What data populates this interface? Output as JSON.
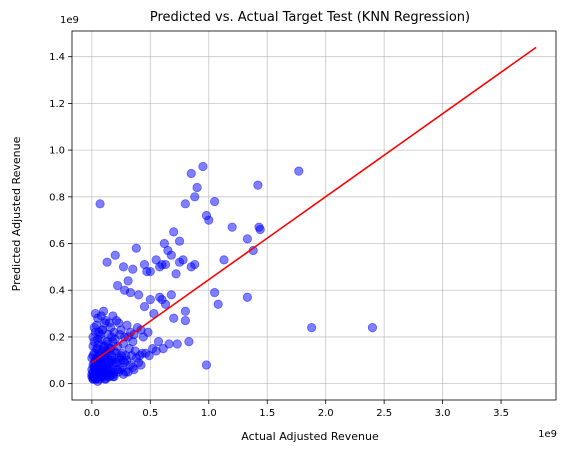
{
  "chart_data": {
    "type": "scatter",
    "title": "Predicted vs. Actual Target Test (KNN Regression)",
    "xlabel": "Actual Adjusted Revenue",
    "ylabel": "Predicted Adjusted Revenue",
    "x_offset_label": "1e9",
    "y_offset_label": "1e9",
    "xlim": [
      -0.17,
      3.97
    ],
    "ylim": [
      -0.07,
      1.51
    ],
    "x_ticks": [
      0.0,
      0.5,
      1.0,
      1.5,
      2.0,
      2.5,
      3.0,
      3.5
    ],
    "x_tick_labels": [
      "0.0",
      "0.5",
      "1.0",
      "1.5",
      "2.0",
      "2.5",
      "3.0",
      "3.5"
    ],
    "y_ticks": [
      0.0,
      0.2,
      0.4,
      0.6,
      0.8,
      1.0,
      1.2,
      1.4
    ],
    "y_tick_labels": [
      "0.0",
      "0.2",
      "0.4",
      "0.6",
      "0.8",
      "1.0",
      "1.2",
      "1.4"
    ],
    "grid": true,
    "point_color": "#0000ff",
    "point_alpha": 0.5,
    "line_color": "#ff0000",
    "scatter": {
      "x": [
        0.07,
        0.95,
        0.85,
        0.9,
        1.77,
        1.42,
        0.88,
        0.8,
        0.98,
        1.05,
        0.7,
        0.75,
        1.2,
        1.44,
        1.43,
        1.33,
        1.0,
        0.62,
        0.55,
        0.6,
        0.75,
        0.2,
        0.27,
        0.13,
        0.38,
        0.35,
        0.45,
        0.47,
        0.31,
        0.5,
        0.58,
        0.63,
        0.65,
        0.68,
        0.72,
        0.78,
        0.85,
        0.88,
        1.13,
        1.38,
        1.08,
        1.33,
        1.88,
        2.4,
        0.6,
        0.68,
        0.8,
        1.05,
        0.98,
        0.22,
        0.28,
        0.33,
        0.4,
        0.5,
        0.58,
        0.45,
        0.53,
        0.63,
        0.7,
        0.8,
        0.73,
        0.83,
        0.03,
        0.05,
        0.08,
        0.1,
        0.12,
        0.15,
        0.18,
        0.02,
        0.04,
        0.06,
        0.09,
        0.11,
        0.14,
        0.16,
        0.19,
        0.21,
        0.23,
        0.25,
        0.28,
        0.3,
        0.33,
        0.36,
        0.39,
        0.42,
        0.44,
        0.48,
        0.01,
        0.03,
        0.05,
        0.07,
        0.09,
        0.13,
        0.17,
        0.2,
        0.24,
        0.27,
        0.31,
        0.35,
        0.01,
        0.02,
        0.04,
        0.06,
        0.08,
        0.1,
        0.12,
        0.14,
        0.16,
        0.18,
        0.02,
        0.05,
        0.07,
        0.09,
        0.11,
        0.13,
        0.15,
        0.17,
        0.19,
        0.22,
        0.26,
        0.29,
        0.32,
        0.37,
        0.41,
        0.46,
        0.52,
        0.57,
        0.0,
        0.01,
        0.03,
        0.05,
        0.06,
        0.08,
        0.1,
        0.02,
        0.04,
        0.07,
        0.11,
        0.14,
        0.17,
        0.21,
        0.25,
        0.3,
        0.34,
        0.38,
        0.43,
        0.49,
        0.55,
        0.61,
        0.66,
        0.01,
        0.03,
        0.06,
        0.09,
        0.12,
        0.16,
        0.2,
        0.23,
        0.27,
        0.02,
        0.04,
        0.06,
        0.08,
        0.1,
        0.13,
        0.15,
        0.18,
        0.21,
        0.24,
        0.28,
        0.33,
        0.0,
        0.02,
        0.04,
        0.05,
        0.07,
        0.09,
        0.11,
        0.13,
        0.15,
        0.01,
        0.03,
        0.05,
        0.08,
        0.1,
        0.12,
        0.14,
        0.16,
        0.19,
        0.22,
        0.26,
        0.31,
        0.36,
        0.42,
        0.0,
        0.01,
        0.02,
        0.03,
        0.04,
        0.06,
        0.08,
        0.1,
        0.12,
        0.01,
        0.02,
        0.04,
        0.06,
        0.08,
        0.11,
        0.13,
        0.16,
        0.19,
        0.23,
        0.27,
        0.02,
        0.05,
        0.09,
        0.14,
        0.18,
        0.24,
        0.29,
        0.35,
        0.4,
        0.0,
        0.01,
        0.02,
        0.03,
        0.05,
        0.07,
        0.09,
        0.12,
        0.15,
        0.18
      ],
      "y": [
        0.77,
        0.93,
        0.9,
        0.84,
        0.91,
        0.85,
        0.8,
        0.77,
        0.72,
        0.78,
        0.65,
        0.61,
        0.67,
        0.66,
        0.67,
        0.62,
        0.7,
        0.6,
        0.53,
        0.51,
        0.52,
        0.55,
        0.5,
        0.52,
        0.58,
        0.49,
        0.51,
        0.48,
        0.44,
        0.48,
        0.5,
        0.51,
        0.57,
        0.55,
        0.47,
        0.53,
        0.5,
        0.51,
        0.53,
        0.57,
        0.34,
        0.37,
        0.24,
        0.24,
        0.36,
        0.38,
        0.31,
        0.39,
        0.08,
        0.42,
        0.4,
        0.39,
        0.38,
        0.36,
        0.37,
        0.33,
        0.3,
        0.34,
        0.28,
        0.27,
        0.17,
        0.18,
        0.3,
        0.28,
        0.29,
        0.31,
        0.27,
        0.26,
        0.29,
        0.24,
        0.25,
        0.22,
        0.23,
        0.26,
        0.21,
        0.24,
        0.22,
        0.27,
        0.26,
        0.23,
        0.2,
        0.25,
        0.22,
        0.21,
        0.24,
        0.23,
        0.2,
        0.22,
        0.2,
        0.22,
        0.19,
        0.21,
        0.23,
        0.18,
        0.2,
        0.19,
        0.21,
        0.17,
        0.2,
        0.18,
        0.16,
        0.18,
        0.15,
        0.17,
        0.19,
        0.16,
        0.14,
        0.17,
        0.15,
        0.18,
        0.13,
        0.15,
        0.12,
        0.14,
        0.16,
        0.13,
        0.15,
        0.12,
        0.14,
        0.16,
        0.13,
        0.12,
        0.15,
        0.14,
        0.12,
        0.13,
        0.15,
        0.18,
        0.11,
        0.12,
        0.1,
        0.11,
        0.13,
        0.1,
        0.12,
        0.09,
        0.11,
        0.1,
        0.12,
        0.11,
        0.1,
        0.13,
        0.12,
        0.1,
        0.12,
        0.11,
        0.13,
        0.12,
        0.14,
        0.15,
        0.17,
        0.08,
        0.09,
        0.1,
        0.08,
        0.09,
        0.1,
        0.09,
        0.11,
        0.1,
        0.07,
        0.08,
        0.07,
        0.09,
        0.08,
        0.07,
        0.09,
        0.08,
        0.09,
        0.1,
        0.09,
        0.08,
        0.06,
        0.07,
        0.05,
        0.06,
        0.07,
        0.06,
        0.05,
        0.07,
        0.06,
        0.05,
        0.06,
        0.04,
        0.05,
        0.06,
        0.05,
        0.04,
        0.06,
        0.05,
        0.06,
        0.07,
        0.05,
        0.06,
        0.08,
        0.04,
        0.03,
        0.04,
        0.05,
        0.03,
        0.04,
        0.03,
        0.05,
        0.04,
        0.02,
        0.03,
        0.02,
        0.03,
        0.04,
        0.02,
        0.03,
        0.04,
        0.03,
        0.05,
        0.04,
        0.03,
        0.04,
        0.06,
        0.05,
        0.04,
        0.06,
        0.05,
        0.07,
        0.09,
        0.03,
        0.02,
        0.03,
        0.02,
        0.01,
        0.02,
        0.03,
        0.02,
        0.03,
        0.03
      ]
    },
    "fit_line": {
      "x": [
        0.0,
        3.8
      ],
      "y": [
        0.09,
        1.44
      ]
    }
  }
}
